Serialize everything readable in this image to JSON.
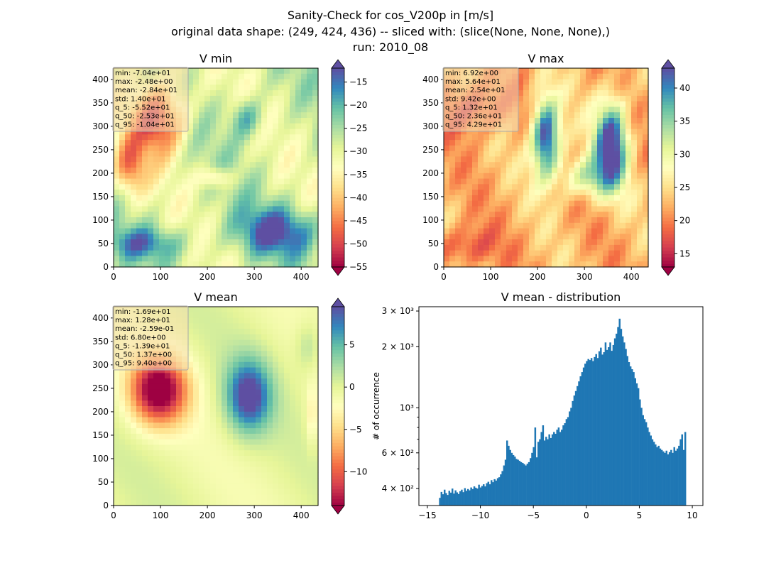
{
  "figure": {
    "title_lines": [
      "Sanity-Check for cos_V200p in [m/s]",
      "original data shape: (249, 424, 436) -- sliced with: (slice(None, None, None),)",
      "run: 2010_08"
    ]
  },
  "chart_data": [
    {
      "type": "heatmap",
      "id": "vmin",
      "title": "V min",
      "xticks": [
        0,
        100,
        200,
        300,
        400
      ],
      "yticks": [
        0,
        50,
        100,
        150,
        200,
        250,
        300,
        350,
        400
      ],
      "xlim": [
        0,
        436
      ],
      "ylim": [
        0,
        424
      ],
      "colormap": "Spectral",
      "colorbar": {
        "vmin": -55,
        "vmax": -12,
        "ticks": [
          -55,
          -50,
          -45,
          -40,
          -35,
          -30,
          -25,
          -20,
          -15
        ],
        "extend": "both"
      },
      "stats": [
        "min: -7.04e+01",
        "max: -2.48e+00",
        "mean: -2.84e+01",
        "std: 1.40e+01",
        "q_5: -5.52e+01",
        "q_50: -2.53e+01",
        "q_95: -1.04e+01"
      ]
    },
    {
      "type": "heatmap",
      "id": "vmax",
      "title": "V max",
      "xticks": [
        0,
        100,
        200,
        300,
        400
      ],
      "yticks": [
        0,
        50,
        100,
        150,
        200,
        250,
        300,
        350,
        400
      ],
      "xlim": [
        0,
        436
      ],
      "ylim": [
        0,
        424
      ],
      "colormap": "Spectral",
      "colorbar": {
        "vmin": 13,
        "vmax": 43,
        "ticks": [
          15,
          20,
          25,
          30,
          35,
          40
        ],
        "extend": "both"
      },
      "stats": [
        "min: 6.92e+00",
        "max: 5.64e+01",
        "mean: 2.54e+01",
        "std: 9.42e+00",
        "q_5: 1.32e+01",
        "q_50: 2.36e+01",
        "q_95: 4.29e+01"
      ]
    },
    {
      "type": "heatmap",
      "id": "vmean",
      "title": "V mean",
      "xticks": [
        0,
        100,
        200,
        300,
        400
      ],
      "yticks": [
        0,
        50,
        100,
        150,
        200,
        250,
        300,
        350,
        400
      ],
      "xlim": [
        0,
        436
      ],
      "ylim": [
        0,
        424
      ],
      "colormap": "Spectral",
      "colorbar": {
        "vmin": -14,
        "vmax": 9.5,
        "ticks": [
          -10,
          -5,
          0,
          5
        ],
        "extend": "both"
      },
      "stats": [
        "min: -1.69e+01",
        "max: 1.28e+01",
        "mean: -2.59e-01",
        "std: 6.80e+00",
        "q_5: -1.39e+01",
        "q_50: 1.37e+00",
        "q_95: 9.40e+00"
      ]
    },
    {
      "type": "bar",
      "id": "dist",
      "title": "V mean - distribution",
      "xlabel": "",
      "ylabel": "# of occurrence",
      "xlim": [
        -15.8,
        11.0
      ],
      "ylim": [
        330,
        3150
      ],
      "yscale": "log",
      "color": "#1f77b4",
      "xticks": [
        -15,
        -10,
        -5,
        0,
        5,
        10
      ],
      "yticks_major": [
        {
          "value": 400,
          "label": "4 × 10²"
        },
        {
          "value": 600,
          "label": "6 × 10²"
        },
        {
          "value": 1000,
          "label": "10³"
        },
        {
          "value": 2000,
          "label": "2 × 10³"
        },
        {
          "value": 3000,
          "label": "3 × 10³"
        }
      ],
      "yticks_minor": [
        500,
        700,
        800,
        900
      ],
      "bin_edges_range": [
        -13.9,
        9.4
      ],
      "counts": [
        360,
        385,
        375,
        395,
        380,
        372,
        390,
        382,
        400,
        378,
        392,
        383,
        376,
        388,
        395,
        384,
        402,
        390,
        398,
        392,
        405,
        398,
        410,
        404,
        400,
        418,
        405,
        412,
        420,
        410,
        425,
        432,
        420,
        440,
        430,
        445,
        438,
        450,
        455,
        470,
        488,
        520,
        555,
        690,
        650,
        620,
        600,
        585,
        575,
        560,
        555,
        548,
        540,
        535,
        528,
        520,
        530,
        540,
        565,
        600,
        640,
        800,
        570,
        680,
        700,
        760,
        820,
        690,
        720,
        700,
        740,
        710,
        740,
        760,
        745,
        780,
        800,
        760,
        780,
        820,
        840,
        880,
        900,
        960,
        1000,
        1080,
        1150,
        1210,
        1280,
        1350,
        1430,
        1500,
        1580,
        1650,
        1700,
        1740,
        1720,
        1760,
        1700,
        1780,
        1840,
        1760,
        1900,
        1980,
        1830,
        1880,
        2100,
        1930,
        1990,
        2100,
        1910,
        2040,
        2200,
        2320,
        2500,
        2750,
        2450,
        2250,
        2100,
        1950,
        1800,
        1680,
        1600,
        1550,
        1500,
        1400,
        1320,
        1250,
        1100,
        1000,
        920,
        880,
        850,
        800,
        760,
        730,
        700,
        680,
        660,
        640,
        650,
        630,
        620,
        610,
        600,
        615,
        590,
        605,
        620,
        600,
        640,
        615,
        630,
        650,
        700,
        740,
        620,
        760
      ]
    }
  ]
}
